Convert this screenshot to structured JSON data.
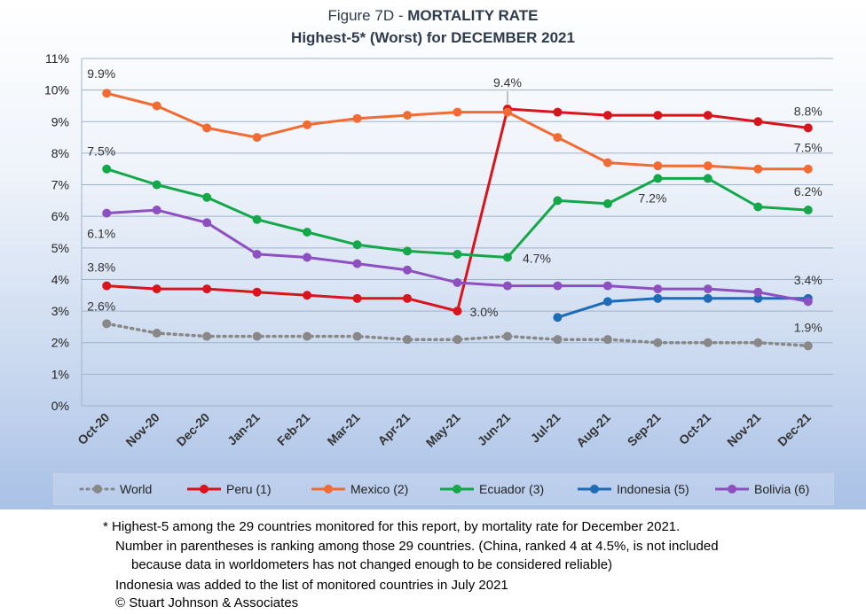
{
  "chart_data": {
    "type": "line",
    "title_prefix": "Figure 7D  - ",
    "title_bold": "MORTALITY RATE",
    "subtitle": "Highest-5* (Worst) for DECEMBER 2021",
    "categories": [
      "Oct-20",
      "Nov-20",
      "Dec-20",
      "Jan-21",
      "Feb-21",
      "Mar-21",
      "Apr-21",
      "May-21",
      "Jun-21",
      "Jul-21",
      "Aug-21",
      "Sep-21",
      "Oct-21",
      "Nov-21",
      "Dec-21"
    ],
    "y_ticks": [
      "0%",
      "1%",
      "2%",
      "3%",
      "4%",
      "5%",
      "6%",
      "7%",
      "8%",
      "9%",
      "10%",
      "11%"
    ],
    "ylim": [
      0,
      11
    ],
    "grid": true,
    "legend_position": "bottom",
    "series": [
      {
        "name": "World",
        "color": "#888888",
        "dashed": true,
        "values": [
          2.6,
          2.3,
          2.2,
          2.2,
          2.2,
          2.2,
          2.1,
          2.1,
          2.2,
          2.1,
          2.1,
          2.0,
          2.0,
          2.0,
          1.9
        ]
      },
      {
        "name": "Peru (1)",
        "color": "#d9141c",
        "dashed": false,
        "values": [
          3.8,
          3.7,
          3.7,
          3.6,
          3.5,
          3.4,
          3.4,
          3.0,
          9.4,
          9.3,
          9.2,
          9.2,
          9.2,
          9.0,
          8.8
        ]
      },
      {
        "name": "Mexico (2)",
        "color": "#f26b33",
        "dashed": false,
        "values": [
          9.9,
          9.5,
          8.8,
          8.5,
          8.9,
          9.1,
          9.2,
          9.3,
          9.3,
          8.5,
          7.7,
          7.6,
          7.6,
          7.5,
          7.5
        ]
      },
      {
        "name": "Ecuador (3)",
        "color": "#14a84a",
        "dashed": false,
        "values": [
          7.5,
          7.0,
          6.6,
          5.9,
          5.5,
          5.1,
          4.9,
          4.8,
          4.7,
          6.5,
          6.4,
          7.2,
          7.2,
          6.3,
          6.2
        ]
      },
      {
        "name": "Indonesia (5)",
        "color": "#1f6bb5",
        "dashed": false,
        "values": [
          null,
          null,
          null,
          null,
          null,
          null,
          null,
          null,
          null,
          2.8,
          3.3,
          3.4,
          3.4,
          3.4,
          3.4
        ]
      },
      {
        "name": "Bolivia (6)",
        "color": "#8e4fc1",
        "dashed": false,
        "values": [
          6.1,
          6.2,
          5.8,
          4.8,
          4.7,
          4.5,
          4.3,
          3.9,
          3.8,
          3.8,
          3.8,
          3.7,
          3.7,
          3.6,
          3.3
        ]
      }
    ],
    "annotations": [
      {
        "text": "9.9%",
        "series": 2,
        "index": 0
      },
      {
        "text": "7.5%",
        "series": 3,
        "index": 0
      },
      {
        "text": "6.1%",
        "series": 5,
        "index": 0
      },
      {
        "text": "3.8%",
        "series": 1,
        "index": 0
      },
      {
        "text": "2.6%",
        "series": 0,
        "index": 0
      },
      {
        "text": "3.0%",
        "series": 1,
        "index": 7
      },
      {
        "text": "9.4%",
        "series": 1,
        "index": 8
      },
      {
        "text": "4.7%",
        "series": 3,
        "index": 8
      },
      {
        "text": "7.2%",
        "series": 3,
        "index": 11
      },
      {
        "text": "8.8%",
        "series": 1,
        "index": 14
      },
      {
        "text": "7.5%",
        "series": 2,
        "index": 14
      },
      {
        "text": "6.2%",
        "series": 3,
        "index": 14
      },
      {
        "text": "3.4%",
        "series": 4,
        "index": 14
      },
      {
        "text": "1.9%",
        "series": 0,
        "index": 14
      }
    ]
  },
  "footnotes": {
    "line1": "* Highest-5 among the 29 countries monitored for this report, by mortality rate for December 2021.",
    "line2": "Number in parentheses is ranking among those 29 countries.  (China, ranked 4 at 4.5%, is not included",
    "line3": "because data in worldometers has not changed enough to be considered reliable)",
    "line4": "Indonesia was added to the list of monitored countries in July 2021",
    "line5": "© Stuart Johnson & Associates"
  }
}
